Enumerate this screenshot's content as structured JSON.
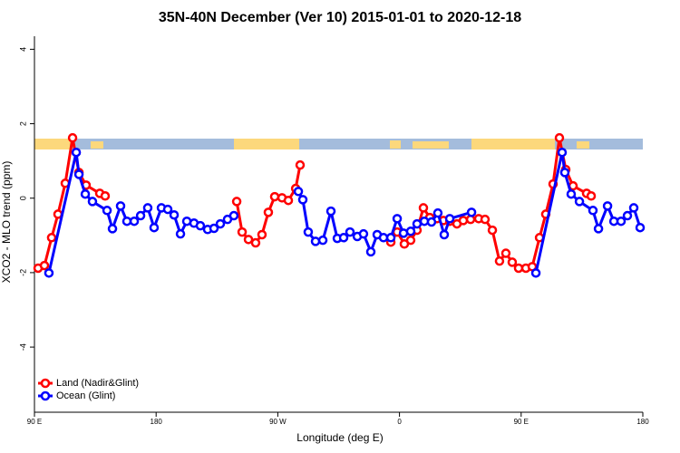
{
  "chart_data": {
    "type": "line",
    "title": "35N-40N December (Ver 10)   2015-01-01 to 2020-12-18",
    "x_label": "Longitude (deg E)",
    "y_label": "XCO2 - MLO trend (ppm)",
    "xlim": [
      90,
      540
    ],
    "ylim": [
      -5.75,
      4.35
    ],
    "xticks": [
      {
        "value": 90,
        "label": "90 E"
      },
      {
        "value": 180,
        "label": "180"
      },
      {
        "value": 270,
        "label": "90 W"
      },
      {
        "value": 360,
        "label": "0"
      },
      {
        "value": 450,
        "label": "90 E"
      },
      {
        "value": 540,
        "label": "180"
      }
    ],
    "yticks": [
      -4,
      -2,
      0,
      2,
      4
    ],
    "legend": "bottom-left",
    "series": [
      {
        "name": "Land (Nadir&Glint)",
        "color": "#ff0000",
        "x": [
          92.7,
          97.4,
          102.7,
          107.4,
          112.8,
          118.2,
          122.9,
          128.2,
          138.3,
          142.3,
          null,
          239.6,
          243.6,
          248.3,
          253.6,
          258.3,
          263.0,
          267.7,
          273.1,
          277.8,
          283.2,
          286.5,
          null,
          353.6,
          358.3,
          363.6,
          368.3,
          373.0,
          377.7,
          382.4,
          387.8,
          392.5,
          397.2,
          402.5,
          407.2,
          412.6,
          418.6,
          423.3,
          428.7,
          434.0,
          438.7,
          443.4,
          448.1,
          453.5,
          458.2,
          463.6,
          468.2,
          473.6,
          478.3,
          483.0,
          488.4,
          498.4,
          501.8
        ],
        "values": [
          -1.88,
          -1.81,
          -1.06,
          -0.43,
          0.4,
          1.62,
          0.69,
          0.35,
          0.13,
          0.06,
          null,
          -0.09,
          -0.91,
          -1.11,
          -1.2,
          -0.98,
          -0.38,
          0.04,
          0.01,
          -0.06,
          0.26,
          0.89,
          null,
          -1.18,
          -0.91,
          -1.23,
          -1.13,
          -0.86,
          -0.26,
          -0.52,
          -0.55,
          -0.6,
          -0.62,
          -0.69,
          -0.6,
          -0.57,
          -0.55,
          -0.57,
          -0.86,
          -1.69,
          -1.48,
          -1.72,
          -1.88,
          -1.88,
          -1.84,
          -1.06,
          -0.43,
          0.38,
          1.62,
          0.77,
          0.33,
          0.13,
          0.06
        ]
      },
      {
        "name": "Ocean (Glint)",
        "color": "#0000ff",
        "x": [
          100.7,
          120.9,
          122.9,
          127.6,
          132.9,
          143.7,
          147.7,
          153.7,
          158.4,
          163.8,
          168.5,
          173.8,
          178.5,
          183.9,
          188.6,
          193.3,
          198.0,
          202.7,
          208.0,
          212.7,
          218.1,
          222.8,
          227.5,
          232.8,
          237.5,
          null,
          285.2,
          288.5,
          292.5,
          297.9,
          303.3,
          309.3,
          314.0,
          318.7,
          323.4,
          328.8,
          333.4,
          338.8,
          343.5,
          348.2,
          353.6,
          358.3,
          363.0,
          368.3,
          373.0,
          378.4,
          383.7,
          388.4,
          393.1,
          397.2,
          413.3,
          null,
          460.9,
          480.3,
          482.3,
          487.0,
          493.1,
          503.1,
          507.2,
          513.9,
          518.6,
          523.9,
          528.6,
          533.3,
          538.0
        ],
        "values": [
          -2.01,
          1.23,
          0.64,
          0.11,
          -0.09,
          -0.33,
          -0.82,
          -0.21,
          -0.62,
          -0.62,
          -0.47,
          -0.26,
          -0.79,
          -0.26,
          -0.3,
          -0.45,
          -0.96,
          -0.62,
          -0.67,
          -0.74,
          -0.84,
          -0.81,
          -0.69,
          -0.57,
          -0.47,
          null,
          0.18,
          -0.04,
          -0.91,
          -1.16,
          -1.13,
          -0.35,
          -1.08,
          -1.06,
          -0.91,
          -1.03,
          -0.96,
          -1.44,
          -0.98,
          -1.06,
          -1.06,
          -0.55,
          -0.94,
          -0.89,
          -0.69,
          -0.62,
          -0.64,
          -0.4,
          -0.98,
          -0.55,
          -0.38,
          null,
          -2.01,
          1.23,
          0.69,
          0.11,
          -0.09,
          -0.33,
          -0.82,
          -0.21,
          -0.62,
          -0.62,
          -0.47,
          -0.26,
          -0.79
        ]
      }
    ]
  }
}
